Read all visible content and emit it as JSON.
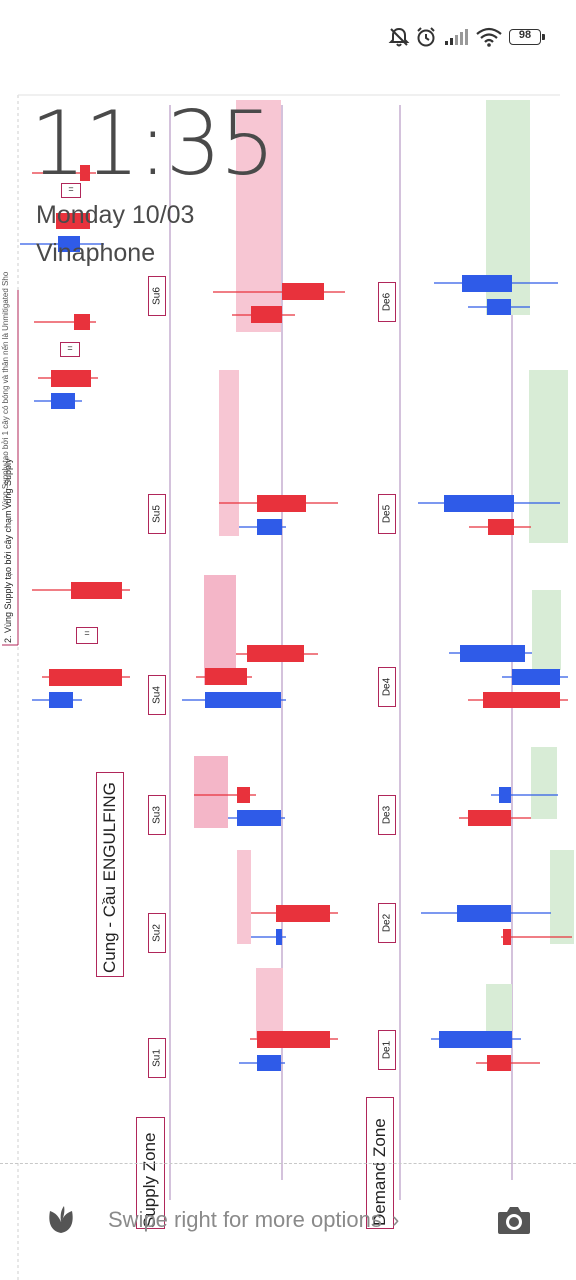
{
  "status_bar": {
    "icons": [
      "bell-muted-icon",
      "alarm-icon",
      "signal-icon",
      "wifi-icon",
      "battery-icon"
    ],
    "battery_level": "98"
  },
  "lock_screen": {
    "time": "11:35",
    "date": "Monday 10/03",
    "carrier": "Vinaphone"
  },
  "wallpaper": {
    "title": "Cung - Cầu ENGULFING",
    "supply_zone_label": "Supply Zone",
    "demand_zone_label": "Demand Zone",
    "supply_labels": [
      "Su6",
      "Su5",
      "Su4",
      "Su3",
      "Su2",
      "Su1"
    ],
    "demand_labels": [
      "De6",
      "De5",
      "De4",
      "De3",
      "De2",
      "De1"
    ],
    "side_note": "2. Vùng Supply tạo bởi cây chạm vùng Supply",
    "side_note_top": "Vùng Supply tạo bởi 1 cây có bóng và thân nến là Unmitigated Sho",
    "equals_sign": "=",
    "colors": {
      "bull": "#2f5be8",
      "bear": "#e8323c",
      "supply_zone": "#f7c6d3",
      "demand_zone": "#d8ecd6",
      "axis": "#8b5e9c"
    }
  },
  "bottom": {
    "swipe_hint": "Swipe right for more options",
    "chevron": "›",
    "left_icon": "leaf-icon",
    "right_icon": "camera-icon"
  }
}
